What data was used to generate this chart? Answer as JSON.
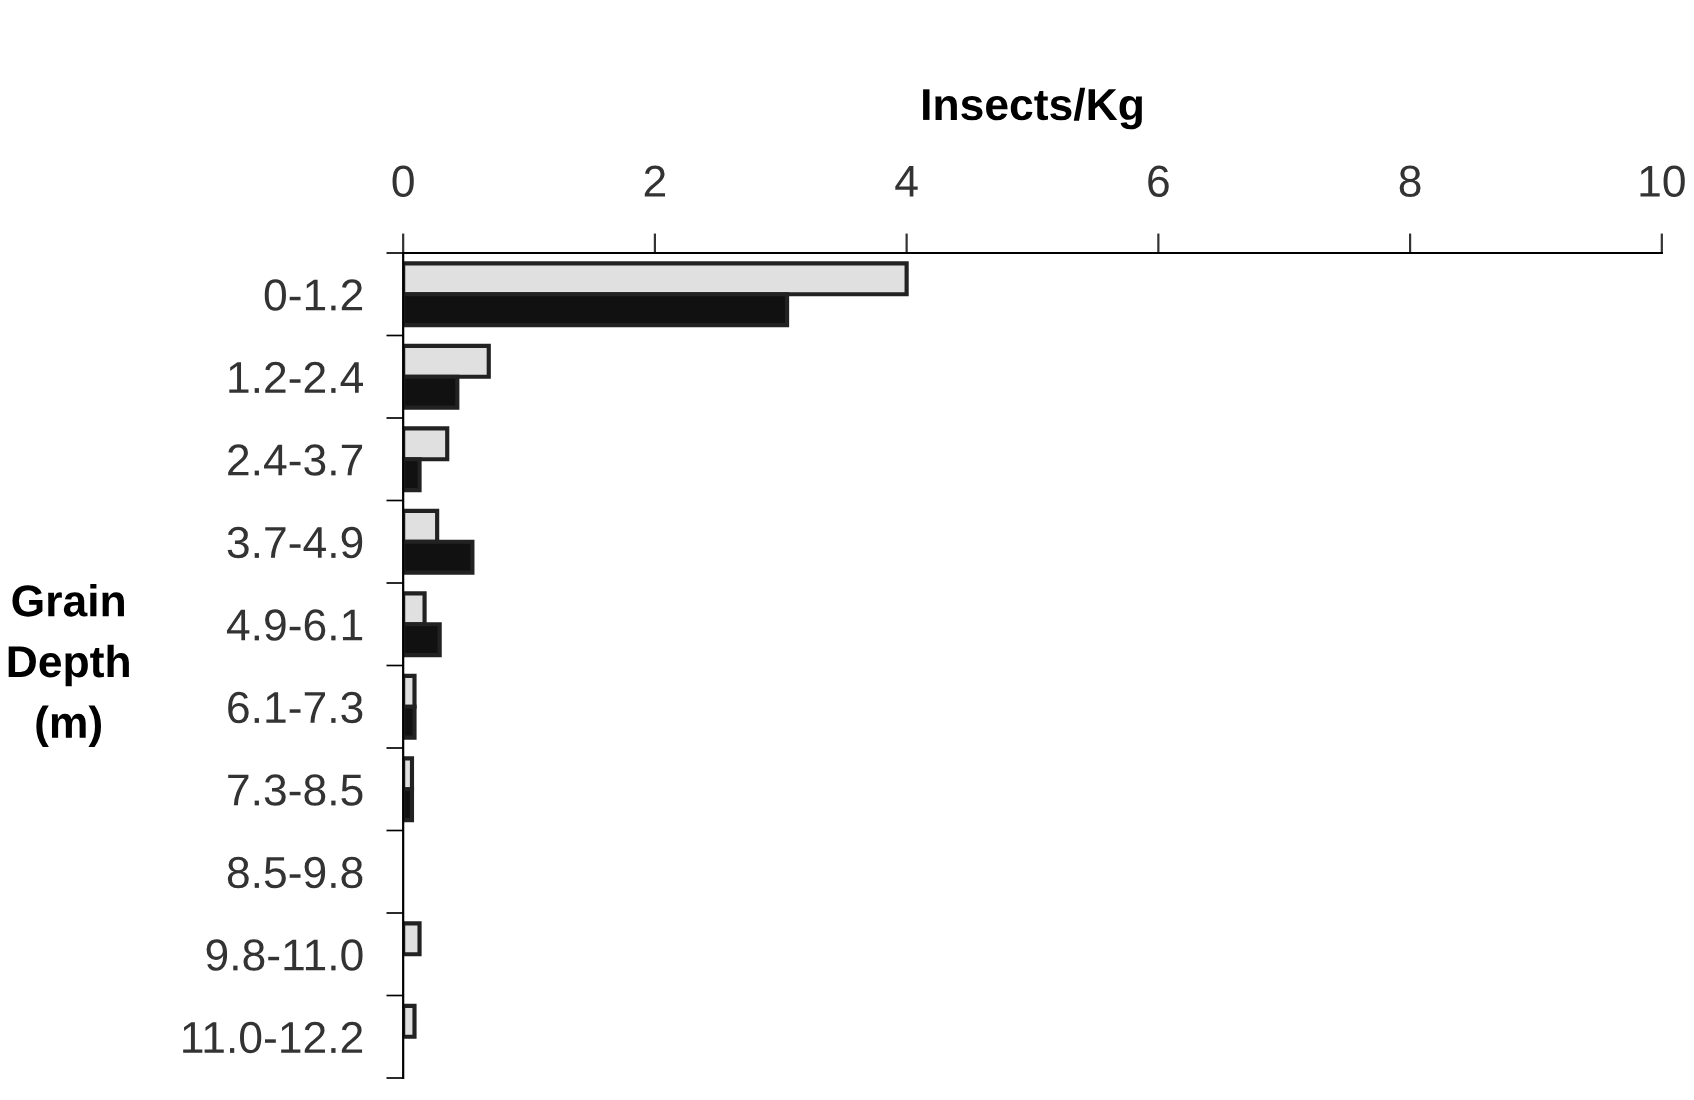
{
  "chart_data": {
    "type": "bar",
    "orientation": "horizontal",
    "xlabel": "Insects/Kg",
    "ylabel": "Grain\nDepth\n(m)",
    "categories": [
      "0-1.2",
      "1.2-2.4",
      "2.4-3.7",
      "3.7-4.9",
      "4.9-6.1",
      "6.1-7.3",
      "7.3-8.5",
      "8.5-9.8",
      "9.8-11.0",
      "11.0-12.2"
    ],
    "series": [
      {
        "color": "#e0e0e0",
        "values": [
          4.0,
          0.68,
          0.35,
          0.27,
          0.17,
          0.09,
          0.07,
          null,
          0.13,
          0.09
        ]
      },
      {
        "color": "#111111",
        "values": [
          3.05,
          0.43,
          0.13,
          0.55,
          0.29,
          0.09,
          0.07,
          null,
          null,
          null
        ]
      }
    ],
    "xlim": [
      0,
      10
    ],
    "xticks": [
      0,
      2,
      4,
      6,
      8,
      10
    ],
    "grid": false
  }
}
